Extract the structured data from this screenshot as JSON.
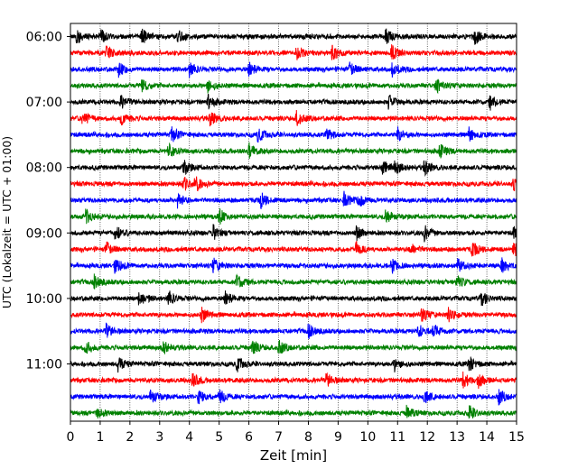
{
  "chart_data": {
    "type": "line",
    "title": "",
    "xlabel": "Zeit  [min]",
    "ylabel": "UTC (Lokalzeit = UTC + 01:00)",
    "xlim": [
      0,
      15
    ],
    "x_ticks": [
      0,
      1,
      2,
      3,
      4,
      5,
      6,
      7,
      8,
      9,
      10,
      11,
      12,
      13,
      14,
      15
    ],
    "y_ticks": [
      "06:00",
      "07:00",
      "08:00",
      "09:00",
      "10:00",
      "11:00"
    ],
    "grid": "vertical dotted at each minute",
    "row_interval_min": 15,
    "start_time": "06:00",
    "row_colors": [
      "#000000",
      "#ff0000",
      "#0000ff",
      "#008000"
    ],
    "traces": [
      {
        "time": "06:00",
        "color": "#000000",
        "events": [
          0.2,
          1.0,
          2.4,
          3.6,
          10.6,
          13.6
        ]
      },
      {
        "time": "06:15",
        "color": "#ff0000",
        "events": [
          1.2,
          7.6,
          8.8,
          10.8
        ]
      },
      {
        "time": "06:30",
        "color": "#0000ff",
        "events": [
          1.6,
          4.0,
          6.0,
          9.4,
          10.8
        ]
      },
      {
        "time": "06:45",
        "color": "#008000",
        "events": [
          2.4,
          4.6,
          12.3
        ]
      },
      {
        "time": "07:00",
        "color": "#000000",
        "events": [
          1.7,
          4.6,
          10.7,
          14.1
        ]
      },
      {
        "time": "07:15",
        "color": "#ff0000",
        "events": [
          0.4,
          1.7,
          4.7,
          7.6
        ]
      },
      {
        "time": "07:30",
        "color": "#0000ff",
        "events": [
          3.4,
          6.3,
          8.6,
          11.0,
          13.4
        ]
      },
      {
        "time": "07:45",
        "color": "#008000",
        "events": [
          3.3,
          6.0,
          12.4
        ]
      },
      {
        "time": "08:00",
        "color": "#000000",
        "events": [
          3.8,
          10.5,
          10.9,
          11.9
        ]
      },
      {
        "time": "08:15",
        "color": "#ff0000",
        "events": [
          3.8,
          4.2,
          14.9
        ]
      },
      {
        "time": "08:30",
        "color": "#0000ff",
        "events": [
          3.6,
          6.4,
          9.2,
          9.7
        ]
      },
      {
        "time": "08:45",
        "color": "#008000",
        "events": [
          0.5,
          5.0,
          10.6
        ]
      },
      {
        "time": "09:00",
        "color": "#000000",
        "events": [
          1.5,
          4.8,
          9.6,
          11.9,
          14.9
        ]
      },
      {
        "time": "09:15",
        "color": "#ff0000",
        "events": [
          1.2,
          9.6,
          11.4,
          13.5,
          14.9
        ]
      },
      {
        "time": "09:30",
        "color": "#0000ff",
        "events": [
          1.5,
          4.8,
          10.8,
          13.0,
          14.5
        ]
      },
      {
        "time": "09:45",
        "color": "#008000",
        "events": [
          0.8,
          5.6,
          13.0
        ]
      },
      {
        "time": "10:00",
        "color": "#000000",
        "events": [
          2.3,
          3.3,
          5.2,
          13.8
        ]
      },
      {
        "time": "10:15",
        "color": "#ff0000",
        "events": [
          4.4,
          11.8,
          12.7
        ]
      },
      {
        "time": "10:30",
        "color": "#0000ff",
        "events": [
          1.2,
          8.0,
          11.7,
          12.2
        ]
      },
      {
        "time": "10:45",
        "color": "#008000",
        "events": [
          0.5,
          3.1,
          6.1,
          7.0
        ]
      },
      {
        "time": "11:00",
        "color": "#000000",
        "events": [
          1.6,
          5.6,
          10.9,
          13.4
        ]
      },
      {
        "time": "11:15",
        "color": "#ff0000",
        "events": [
          4.1,
          8.6,
          13.2,
          13.7
        ]
      },
      {
        "time": "11:30",
        "color": "#0000ff",
        "events": [
          2.7,
          4.3,
          5.0,
          11.9,
          14.4
        ]
      },
      {
        "time": "11:45",
        "color": "#008000",
        "events": [
          0.9,
          11.3,
          13.4
        ]
      }
    ]
  }
}
